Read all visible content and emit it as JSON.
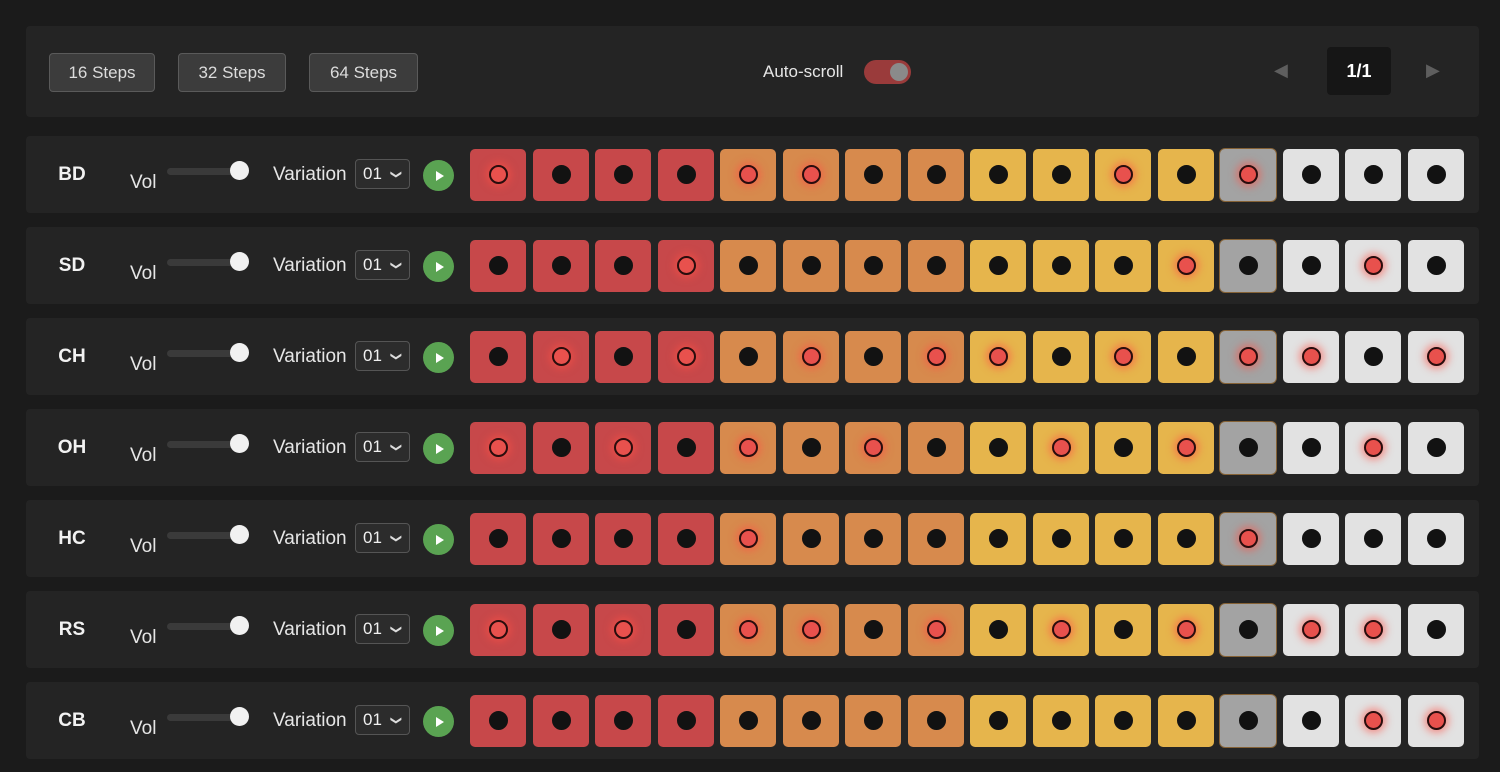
{
  "toolbar": {
    "step_options": [
      {
        "label": "16 Steps",
        "active": true
      },
      {
        "label": "32 Steps",
        "active": false
      },
      {
        "label": "64 Steps",
        "active": false
      }
    ],
    "autoscroll_label": "Auto-scroll",
    "autoscroll_on": true,
    "pager": {
      "prev_icon": "◀",
      "next_icon": "▶",
      "count": "1/1"
    }
  },
  "colors": {
    "group1": "#c7484a",
    "group2": "#d78a4d",
    "group3": "#e6b54c",
    "group4": "#e2e2e2",
    "current": "#a3a3a3",
    "accent": "#e9534f",
    "play": "#5aa352"
  },
  "current_step": 12,
  "labels": {
    "vol": "Vol",
    "variation": "Variation"
  },
  "tracks": [
    {
      "name": "BD",
      "variation": "01",
      "volume": 1.0,
      "steps": [
        1,
        0,
        0,
        0,
        1,
        1,
        0,
        0,
        0,
        0,
        1,
        0,
        1,
        0,
        0,
        0
      ]
    },
    {
      "name": "SD",
      "variation": "01",
      "volume": 1.0,
      "steps": [
        0,
        0,
        0,
        1,
        0,
        0,
        0,
        0,
        0,
        0,
        0,
        1,
        0,
        0,
        1,
        0
      ]
    },
    {
      "name": "CH",
      "variation": "01",
      "volume": 1.0,
      "steps": [
        0,
        1,
        0,
        1,
        0,
        1,
        0,
        1,
        1,
        0,
        1,
        0,
        1,
        1,
        0,
        1
      ]
    },
    {
      "name": "OH",
      "variation": "01",
      "volume": 1.0,
      "steps": [
        1,
        0,
        1,
        0,
        1,
        0,
        1,
        0,
        0,
        1,
        0,
        1,
        0,
        0,
        1,
        0
      ]
    },
    {
      "name": "HC",
      "variation": "01",
      "volume": 1.0,
      "steps": [
        0,
        0,
        0,
        0,
        1,
        0,
        0,
        0,
        0,
        0,
        0,
        0,
        1,
        0,
        0,
        0
      ]
    },
    {
      "name": "RS",
      "variation": "01",
      "volume": 1.0,
      "steps": [
        1,
        0,
        1,
        0,
        1,
        1,
        0,
        1,
        0,
        1,
        0,
        1,
        0,
        1,
        1,
        0
      ]
    },
    {
      "name": "CB",
      "variation": "01",
      "volume": 1.0,
      "steps": [
        0,
        0,
        0,
        0,
        0,
        0,
        0,
        0,
        0,
        0,
        0,
        0,
        0,
        0,
        1,
        1
      ]
    }
  ]
}
